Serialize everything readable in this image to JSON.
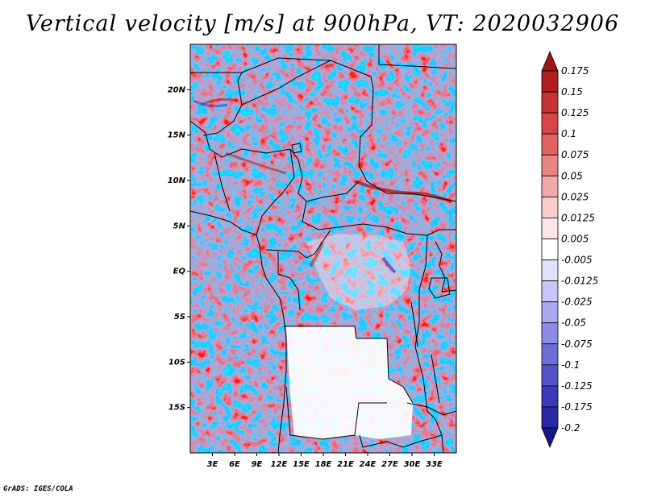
{
  "title": "Vertical velocity [m/s] at 900hPa, VT: 2020032906",
  "footer": "GrADS: IGES/COLA",
  "map": {
    "lon_range": [
      0,
      36
    ],
    "lat_range": [
      -20,
      25
    ],
    "lat_ticks": [
      "20N",
      "15N",
      "10N",
      "5N",
      "EQ",
      "5S",
      "10S",
      "15S"
    ],
    "lat_tick_values": [
      20,
      15,
      10,
      5,
      0,
      -5,
      -10,
      -15
    ],
    "lon_ticks": [
      "3E",
      "6E",
      "9E",
      "12E",
      "15E",
      "18E",
      "21E",
      "24E",
      "27E",
      "30E",
      "33E"
    ],
    "lon_tick_values": [
      3,
      6,
      9,
      12,
      15,
      18,
      21,
      24,
      27,
      30,
      33
    ]
  },
  "colorbar": {
    "labels": [
      "0.175",
      "0.15",
      "0.125",
      "0.1",
      "0.075",
      "0.05",
      "0.025",
      "0.0125",
      "0.005",
      "-0.005",
      "-0.0125",
      "-0.025",
      "-0.05",
      "-0.075",
      "-0.1",
      "-0.125",
      "-0.175",
      "-0.2"
    ],
    "colors": [
      "#a01414",
      "#b21e1e",
      "#c43232",
      "#d64646",
      "#e26262",
      "#ea8484",
      "#f2a8a8",
      "#f8cccc",
      "#fce6e6",
      "#ffffff",
      "#e2e2fc",
      "#c6c6f6",
      "#a8a8ee",
      "#8c8ce4",
      "#6e6ed8",
      "#5454ca",
      "#3a3ab8",
      "#2828a4",
      "#16168c"
    ]
  }
}
